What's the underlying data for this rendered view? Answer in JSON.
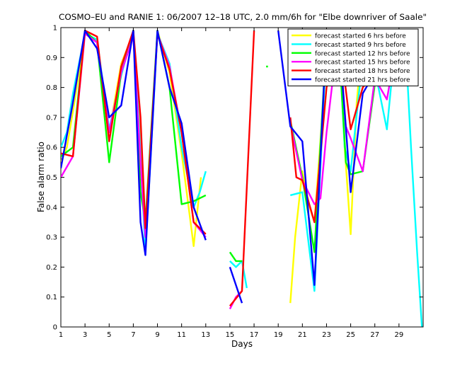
{
  "chart_data": {
    "type": "line",
    "title": "COSMO–EU and RANIE 1: 06/2007 12–18 UTC, 2.0 mm/6h for \"Elbe downriver of Saale\"",
    "xlabel": "Days",
    "ylabel": "False alarm ratio",
    "xlim": [
      1,
      31
    ],
    "ylim": [
      0,
      1
    ],
    "xticks": [
      1,
      3,
      5,
      7,
      9,
      11,
      13,
      15,
      17,
      19,
      21,
      23,
      25,
      27,
      29
    ],
    "yticks": [
      0,
      0.1,
      0.2,
      0.3,
      0.4,
      0.5,
      0.6,
      0.7,
      0.8,
      0.9,
      1
    ],
    "ytick_labels": [
      "0",
      "0.1",
      "0.2",
      "0.3",
      "0.4",
      "0.5",
      "0.6",
      "0.7",
      "0.8",
      "0.9",
      "1"
    ],
    "legend_position": "top-right",
    "series": [
      {
        "name": "forecast started 6 hrs before",
        "color": "#ffff00",
        "points": [
          [
            1,
            0.55
          ],
          [
            1.5,
            0.6
          ],
          [
            2,
            0.72
          ],
          [
            3,
            0.98
          ],
          [
            4,
            0.95
          ],
          [
            4.6,
            0.75
          ],
          [
            5,
            0.65
          ],
          [
            6,
            0.88
          ],
          [
            7,
            0.98
          ],
          [
            7.5,
            0.7
          ],
          [
            8,
            0.3
          ],
          [
            9,
            0.99
          ],
          [
            10,
            0.85
          ],
          [
            11,
            0.58
          ],
          [
            12,
            0.27
          ],
          [
            12.6,
            0.5
          ],
          [
            null,
            null
          ],
          [
            20,
            0.08
          ],
          [
            20.4,
            0.3
          ],
          [
            21,
            0.52
          ],
          [
            21.6,
            0.4
          ],
          [
            22,
            0.35
          ],
          [
            23,
            0.9
          ],
          [
            24,
            0.98
          ],
          [
            24.5,
            0.6
          ],
          [
            25,
            0.31
          ],
          [
            25.5,
            0.75
          ],
          [
            26,
            0.97
          ],
          [
            27,
            0.9
          ],
          [
            28,
            0.82
          ],
          [
            29,
            0.99
          ]
        ]
      },
      {
        "name": "forecast started 9 hrs before",
        "color": "#00ffff",
        "points": [
          [
            1,
            0.6
          ],
          [
            1.5,
            0.65
          ],
          [
            2,
            0.78
          ],
          [
            3,
            0.98
          ],
          [
            4,
            0.96
          ],
          [
            5,
            0.66
          ],
          [
            6,
            0.84
          ],
          [
            7,
            0.99
          ],
          [
            7.5,
            0.65
          ],
          [
            8,
            0.25
          ],
          [
            9,
            0.98
          ],
          [
            10,
            0.88
          ],
          [
            11,
            0.6
          ],
          [
            12,
            0.4
          ],
          [
            12.5,
            0.45
          ],
          [
            13,
            0.52
          ],
          [
            null,
            null
          ],
          [
            15,
            0.22
          ],
          [
            15.5,
            0.2
          ],
          [
            16,
            0.22
          ],
          [
            16.4,
            0.13
          ],
          [
            null,
            null
          ],
          [
            20,
            0.44
          ],
          [
            21,
            0.45
          ],
          [
            22,
            0.12
          ],
          [
            23,
            0.95
          ],
          [
            24,
            0.97
          ],
          [
            24.5,
            0.6
          ],
          [
            25,
            0.52
          ],
          [
            26,
            0.9
          ],
          [
            27,
            0.86
          ],
          [
            28,
            0.66
          ],
          [
            28.7,
            0.95
          ],
          [
            29.5,
            0.98
          ],
          [
            30,
            0.6
          ],
          [
            30.5,
            0.25
          ],
          [
            30.9,
            0
          ]
        ]
      },
      {
        "name": "forecast started 12 hrs before",
        "color": "#00ff00",
        "points": [
          [
            1,
            0.57
          ],
          [
            2,
            0.6
          ],
          [
            3,
            0.99
          ],
          [
            4,
            0.95
          ],
          [
            5,
            0.55
          ],
          [
            6,
            0.85
          ],
          [
            7,
            0.99
          ],
          [
            7.6,
            0.45
          ],
          [
            8,
            0.35
          ],
          [
            9,
            0.99
          ],
          [
            10,
            0.8
          ],
          [
            11,
            0.41
          ],
          [
            12,
            0.42
          ],
          [
            13,
            0.44
          ],
          [
            null,
            null
          ],
          [
            15,
            0.25
          ],
          [
            15.5,
            0.22
          ],
          [
            16,
            0.22
          ],
          [
            null,
            null
          ],
          [
            18,
            0.87
          ],
          [
            18.15,
            0.87
          ],
          [
            null,
            null
          ],
          [
            20,
            0.69
          ],
          [
            21,
            0.5
          ],
          [
            22,
            0.25
          ],
          [
            23,
            0.97
          ],
          [
            24,
            0.97
          ],
          [
            24.6,
            0.55
          ],
          [
            25,
            0.51
          ],
          [
            26,
            0.52
          ],
          [
            27,
            0.81
          ],
          [
            28,
            0.9
          ],
          [
            29,
            0.99
          ]
        ]
      },
      {
        "name": "forecast started 15 hrs before",
        "color": "#ff00ff",
        "points": [
          [
            1,
            0.5
          ],
          [
            2,
            0.57
          ],
          [
            3,
            0.98
          ],
          [
            4,
            0.95
          ],
          [
            5,
            0.65
          ],
          [
            6,
            0.85
          ],
          [
            7,
            0.97
          ],
          [
            7.6,
            0.55
          ],
          [
            8,
            0.3
          ],
          [
            9,
            0.98
          ],
          [
            10,
            0.87
          ],
          [
            11,
            0.65
          ],
          [
            12,
            0.35
          ],
          [
            13,
            0.3
          ],
          [
            null,
            null
          ],
          [
            15,
            0.06
          ],
          [
            15.5,
            0.1
          ],
          [
            16,
            0.12
          ],
          [
            null,
            null
          ],
          [
            20,
            0.68
          ],
          [
            21,
            0.49
          ],
          [
            22,
            0.41
          ],
          [
            22.5,
            0.43
          ],
          [
            23,
            0.65
          ],
          [
            24,
            0.99
          ],
          [
            24.6,
            0.67
          ],
          [
            25,
            0.63
          ],
          [
            26,
            0.52
          ],
          [
            27,
            0.83
          ],
          [
            28,
            0.76
          ],
          [
            29,
            0.99
          ]
        ]
      },
      {
        "name": "forecast started 18 hrs before",
        "color": "#ff0000",
        "points": [
          [
            1,
            0.58
          ],
          [
            2,
            0.57
          ],
          [
            3,
            0.99
          ],
          [
            4,
            0.97
          ],
          [
            5,
            0.62
          ],
          [
            6,
            0.87
          ],
          [
            7,
            0.99
          ],
          [
            7.6,
            0.7
          ],
          [
            8,
            0.33
          ],
          [
            9,
            0.98
          ],
          [
            10,
            0.86
          ],
          [
            11,
            0.65
          ],
          [
            12,
            0.35
          ],
          [
            13,
            0.31
          ],
          [
            null,
            null
          ],
          [
            15,
            0.07
          ],
          [
            16,
            0.12
          ],
          [
            17,
            0.99
          ],
          [
            null,
            null
          ],
          [
            20,
            0.7
          ],
          [
            20.5,
            0.5
          ],
          [
            21,
            0.49
          ],
          [
            22,
            0.35
          ],
          [
            23,
            0.8
          ],
          [
            24,
            0.99
          ],
          [
            25,
            0.66
          ],
          [
            26,
            0.8
          ],
          [
            27,
            0.85
          ],
          [
            28,
            0.92
          ],
          [
            29,
            0.99
          ]
        ]
      },
      {
        "name": "forecast started 21 hrs before",
        "color": "#0000ff",
        "points": [
          [
            1,
            0.53
          ],
          [
            2,
            0.75
          ],
          [
            3,
            0.99
          ],
          [
            4,
            0.93
          ],
          [
            5,
            0.7
          ],
          [
            6,
            0.74
          ],
          [
            7,
            0.99
          ],
          [
            7.6,
            0.35
          ],
          [
            8,
            0.24
          ],
          [
            9,
            0.99
          ],
          [
            10,
            0.8
          ],
          [
            11,
            0.68
          ],
          [
            12,
            0.4
          ],
          [
            13,
            0.29
          ],
          [
            null,
            null
          ],
          [
            15,
            0.2
          ],
          [
            16,
            0.08
          ],
          [
            null,
            null
          ],
          [
            19,
            0.99
          ],
          [
            20,
            0.67
          ],
          [
            21,
            0.62
          ],
          [
            22,
            0.14
          ],
          [
            23,
            0.99
          ],
          [
            24,
            0.99
          ],
          [
            25,
            0.45
          ],
          [
            26,
            0.78
          ],
          [
            27,
            0.85
          ],
          [
            28,
            0.97
          ],
          [
            29,
            0.99
          ]
        ]
      }
    ]
  }
}
